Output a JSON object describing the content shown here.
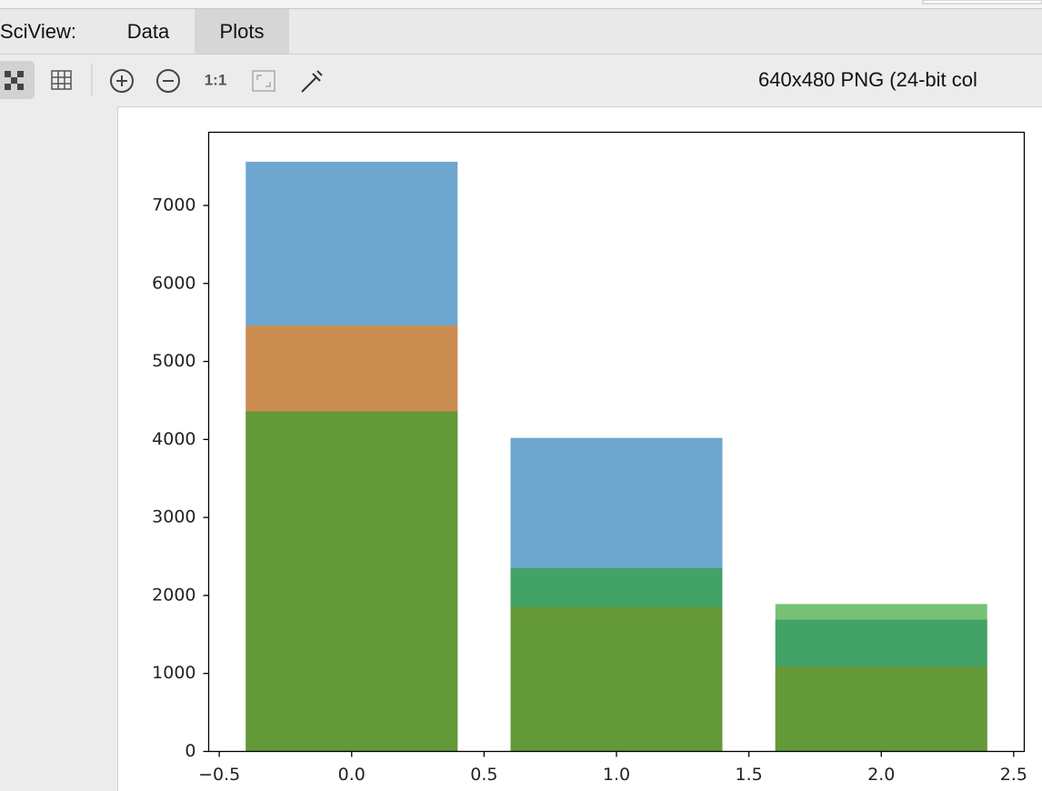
{
  "panel": {
    "label": "SciView:",
    "tabs": [
      "Data",
      "Plots"
    ],
    "zoom_label": "1:1",
    "image_info": "640x480 PNG (24-bit col"
  },
  "chart_data": {
    "type": "bar",
    "x": [
      0,
      1,
      2
    ],
    "bar_width": 0.8,
    "opacity": 0.65,
    "series": [
      {
        "color": "#1f77b4",
        "values": [
          7560,
          4020,
          1690
        ]
      },
      {
        "color": "#ff7f0e",
        "values": [
          5460,
          1850,
          1090
        ]
      },
      {
        "color": "#2ca02c",
        "values": [
          4360,
          2350,
          1890
        ]
      }
    ],
    "xlim": [
      -0.54,
      2.54
    ],
    "xticks": [
      {
        "value": -0.5,
        "label": "−0.5"
      },
      {
        "value": 0,
        "label": "0.0"
      },
      0.5,
      {
        "value": 1,
        "label": "1.0"
      },
      1.5,
      {
        "value": 2,
        "label": "2.0"
      },
      2.5
    ],
    "ylim": [
      0,
      7938
    ],
    "yticks": [
      0,
      1000,
      2000,
      3000,
      4000,
      5000,
      6000,
      7000
    ]
  }
}
